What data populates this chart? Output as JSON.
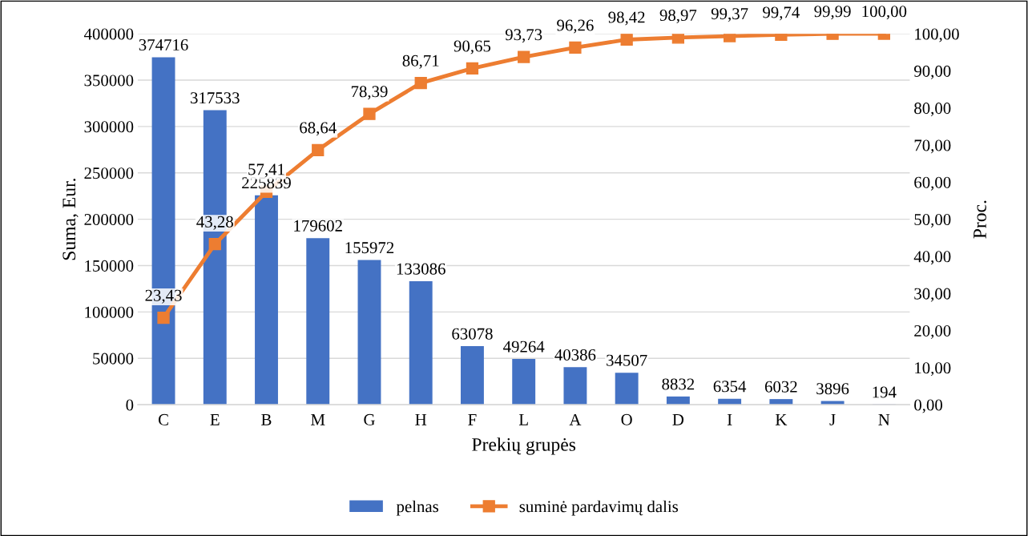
{
  "chart_data": {
    "type": "bar",
    "xlabel": "Prekių grupės",
    "ylabel": "Suma, Eur.",
    "y2label": "Proc.",
    "categories": [
      "C",
      "E",
      "B",
      "M",
      "G",
      "H",
      "F",
      "L",
      "A",
      "O",
      "D",
      "I",
      "K",
      "J",
      "N"
    ],
    "series": [
      {
        "name": "pelnas",
        "color": "#4472c4",
        "values": [
          374716,
          317533,
          225839,
          179602,
          155972,
          133086,
          63078,
          49264,
          40386,
          34507,
          8832,
          6354,
          6032,
          3896,
          194
        ],
        "value_labels": [
          "374716",
          "317533",
          "225839",
          "179602",
          "155972",
          "133086",
          "63078",
          "49264",
          "40386",
          "34507",
          "8832",
          "6354",
          "6032",
          "3896",
          "194"
        ]
      },
      {
        "name": "suminė pardavimų dalis",
        "type": "line",
        "axis": "y2",
        "color": "#ed7d31",
        "marker": "square",
        "line_style": "solid",
        "values": [
          23.43,
          43.28,
          57.41,
          68.64,
          78.39,
          86.71,
          90.65,
          93.73,
          96.26,
          98.42,
          98.97,
          99.37,
          99.74,
          99.99,
          100.0
        ],
        "value_labels": [
          "23,43",
          "43,28",
          "57,41",
          "68,64",
          "78,39",
          "86,71",
          "90,65",
          "93,73",
          "96,26",
          "98,42",
          "98,97",
          "99,37",
          "99,74",
          "99,99",
          "100,00"
        ]
      }
    ],
    "ylim": [
      0,
      400000
    ],
    "yticks": [
      0,
      50000,
      100000,
      150000,
      200000,
      250000,
      300000,
      350000,
      400000
    ],
    "y2lim": [
      0,
      100
    ],
    "y2ticks": [
      {
        "value": 0,
        "label": "0,00"
      },
      {
        "value": 10,
        "label": "10,00"
      },
      {
        "value": 20,
        "label": "20,00"
      },
      {
        "value": 30,
        "label": "30,00"
      },
      {
        "value": 40,
        "label": "40,00"
      },
      {
        "value": 50,
        "label": "50,00"
      },
      {
        "value": 60,
        "label": "60,00"
      },
      {
        "value": 70,
        "label": "70,00"
      },
      {
        "value": 80,
        "label": "80,00"
      },
      {
        "value": 90,
        "label": "90,00"
      },
      {
        "value": 100,
        "label": "100,00"
      }
    ],
    "grid": "y",
    "legend": "bottom"
  }
}
